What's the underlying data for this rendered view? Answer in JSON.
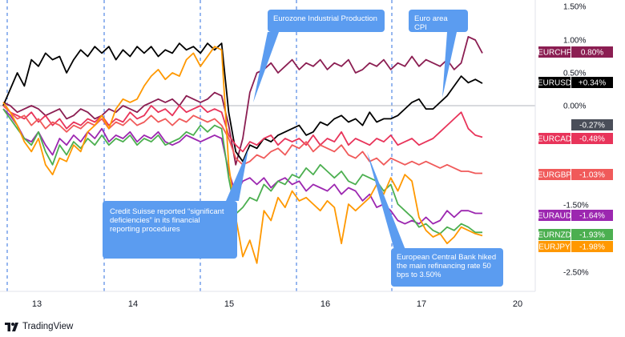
{
  "chart_data": {
    "type": "line",
    "x_ticks": [
      "13",
      "14",
      "15",
      "16",
      "17",
      "20"
    ],
    "y_ticks": [
      "1.50%",
      "1.00%",
      "0.50%",
      "0.00%",
      "-1.50%",
      "-2.50%"
    ],
    "ylim": [
      -2.85,
      1.55
    ],
    "grid": false,
    "legend": "right-edge value labels",
    "series": [
      {
        "name": "EURCHF",
        "value_label": "0.80%",
        "color": "#8b1e52",
        "values": [
          0.05,
          0.0,
          -0.1,
          -0.05,
          0.0,
          -0.05,
          -0.15,
          -0.1,
          -0.05,
          -0.2,
          -0.15,
          -0.05,
          -0.1,
          -0.2,
          -0.15,
          -0.05,
          -0.1,
          0.0,
          -0.05,
          -0.1,
          0.0,
          0.05,
          0.1,
          0.05,
          0.1,
          0.0,
          0.15,
          0.1,
          0.05,
          0.1,
          0.2,
          0.15,
          -0.3,
          -0.9,
          -0.5,
          0.2,
          0.5,
          0.55,
          0.65,
          0.5,
          0.6,
          0.7,
          0.55,
          0.65,
          0.6,
          0.7,
          0.55,
          0.65,
          0.6,
          0.7,
          0.5,
          0.55,
          0.65,
          0.6,
          0.7,
          0.55,
          0.65,
          0.6,
          0.75,
          0.6,
          0.7,
          0.65,
          0.6,
          0.7,
          0.55,
          0.65,
          1.05,
          1.0,
          0.8
        ]
      },
      {
        "name": "EURUSD",
        "value_label": "+0.34%",
        "color": "#000000",
        "values": [
          0.0,
          0.25,
          0.5,
          0.3,
          0.7,
          0.6,
          0.8,
          0.7,
          0.75,
          0.5,
          0.7,
          0.85,
          0.75,
          0.9,
          0.8,
          0.9,
          0.7,
          0.85,
          0.75,
          0.9,
          0.8,
          0.9,
          0.75,
          0.85,
          0.8,
          0.95,
          0.85,
          0.9,
          0.8,
          0.95,
          0.85,
          0.95,
          -0.1,
          -0.7,
          -0.85,
          -0.6,
          -0.65,
          -0.5,
          -0.55,
          -0.45,
          -0.4,
          -0.35,
          -0.3,
          -0.45,
          -0.4,
          -0.25,
          -0.3,
          -0.2,
          -0.15,
          -0.25,
          -0.2,
          -0.3,
          -0.1,
          -0.25,
          -0.2,
          -0.2,
          -0.15,
          -0.05,
          0.05,
          0.1,
          -0.05,
          -0.05,
          0.05,
          0.15,
          0.3,
          0.45,
          0.35,
          0.4,
          0.34
        ]
      },
      {
        "name": "EURCAD",
        "value_label": "-0.48%",
        "color": "#e8345a",
        "values": [
          0.0,
          -0.1,
          -0.15,
          -0.2,
          -0.1,
          -0.25,
          -0.15,
          -0.3,
          -0.2,
          -0.35,
          -0.25,
          -0.3,
          -0.2,
          -0.25,
          -0.15,
          -0.3,
          -0.2,
          -0.25,
          -0.1,
          -0.2,
          -0.15,
          0.0,
          -0.1,
          -0.05,
          -0.15,
          0.0,
          -0.1,
          -0.05,
          0.0,
          -0.1,
          -0.05,
          -0.1,
          -0.45,
          -0.6,
          -0.7,
          -0.55,
          -0.6,
          -0.5,
          -0.45,
          -0.6,
          -0.5,
          -0.55,
          -0.5,
          -0.6,
          -0.45,
          -0.6,
          -0.5,
          -0.55,
          -0.4,
          -0.6,
          -0.5,
          -0.55,
          -0.6,
          -0.5,
          -0.55,
          -0.45,
          -0.6,
          -0.55,
          -0.5,
          -0.6,
          -0.55,
          -0.5,
          -0.4,
          -0.3,
          -0.2,
          -0.1,
          -0.35,
          -0.45,
          -0.48
        ]
      },
      {
        "name": "EURGBP",
        "value_label": "-1.03%",
        "color": "#f05a5a",
        "values": [
          0.0,
          -0.1,
          -0.2,
          -0.15,
          -0.3,
          -0.2,
          -0.35,
          -0.25,
          -0.3,
          -0.4,
          -0.3,
          -0.35,
          -0.25,
          -0.3,
          -0.2,
          -0.35,
          -0.25,
          -0.3,
          -0.2,
          -0.3,
          -0.25,
          -0.15,
          -0.25,
          -0.2,
          -0.3,
          -0.2,
          -0.25,
          -0.15,
          -0.2,
          -0.25,
          -0.2,
          -0.3,
          -0.5,
          -0.8,
          -0.9,
          -0.85,
          -0.75,
          -0.8,
          -0.7,
          -0.65,
          -0.75,
          -0.6,
          -0.65,
          -0.55,
          -0.7,
          -0.6,
          -0.65,
          -0.7,
          -0.6,
          -0.75,
          -0.8,
          -0.7,
          -0.85,
          -0.8,
          -0.9,
          -0.8,
          -0.85,
          -0.9,
          -0.85,
          -0.9,
          -0.85,
          -0.9,
          -0.95,
          -0.9,
          -0.95,
          -1.0,
          -1.0,
          -1.03,
          -1.03
        ]
      },
      {
        "name": "EURAUD",
        "value_label": "-1.64%",
        "color": "#9c27b0",
        "values": [
          -0.05,
          -0.15,
          -0.3,
          -0.5,
          -0.55,
          -0.4,
          -0.6,
          -0.75,
          -0.5,
          -0.6,
          -0.45,
          -0.55,
          -0.4,
          -0.5,
          -0.35,
          -0.55,
          -0.45,
          -0.5,
          -0.4,
          -0.55,
          -0.45,
          -0.5,
          -0.4,
          -0.55,
          -0.6,
          -0.55,
          -0.45,
          -0.5,
          -0.55,
          -0.5,
          -0.45,
          -0.5,
          -1.0,
          -1.35,
          -1.15,
          -1.1,
          -1.2,
          -1.1,
          -1.25,
          -1.15,
          -1.1,
          -1.2,
          -1.15,
          -1.3,
          -1.2,
          -1.25,
          -1.3,
          -1.2,
          -1.35,
          -1.25,
          -1.3,
          -1.45,
          -1.35,
          -1.55,
          -1.5,
          -1.6,
          -1.75,
          -1.8,
          -1.75,
          -1.8,
          -1.7,
          -1.8,
          -1.75,
          -1.6,
          -1.7,
          -1.6,
          -1.6,
          -1.64,
          -1.64
        ]
      },
      {
        "name": "EURNZD",
        "value_label": "-1.93%",
        "color": "#4caf50",
        "values": [
          -0.05,
          -0.2,
          -0.35,
          -0.5,
          -0.6,
          -0.4,
          -0.7,
          -0.9,
          -0.6,
          -0.75,
          -0.55,
          -0.65,
          -0.5,
          -0.6,
          -0.45,
          -0.6,
          -0.5,
          -0.55,
          -0.45,
          -0.6,
          -0.5,
          -0.55,
          -0.45,
          -0.6,
          -0.55,
          -0.5,
          -0.4,
          -0.45,
          -0.3,
          -0.4,
          -0.3,
          -0.35,
          -1.1,
          -1.65,
          -1.55,
          -1.4,
          -1.45,
          -1.2,
          -1.3,
          -1.15,
          -1.2,
          -1.05,
          -1.1,
          -0.95,
          -1.05,
          -0.9,
          -1.0,
          -1.1,
          -1.0,
          -1.15,
          -1.2,
          -1.05,
          -1.1,
          -1.15,
          -1.3,
          -1.2,
          -1.5,
          -1.6,
          -1.7,
          -1.85,
          -1.8,
          -1.9,
          -1.95,
          -1.85,
          -1.9,
          -1.8,
          -1.85,
          -1.93,
          -1.93
        ]
      },
      {
        "name": "EURJPY",
        "value_label": "-1.98%",
        "color": "#ff9800",
        "values": [
          0.05,
          -0.1,
          -0.3,
          -0.55,
          -0.7,
          -0.5,
          -0.9,
          -1.05,
          -0.8,
          -0.85,
          -0.6,
          -0.7,
          -0.4,
          -0.3,
          -0.15,
          -0.35,
          -0.05,
          0.1,
          0.05,
          0.1,
          0.3,
          0.45,
          0.55,
          0.4,
          0.5,
          0.45,
          0.7,
          0.8,
          0.6,
          0.75,
          0.9,
          0.85,
          -0.9,
          -1.7,
          -2.3,
          -2.05,
          -2.4,
          -1.6,
          -1.75,
          -1.4,
          -1.55,
          -1.3,
          -1.45,
          -1.4,
          -1.5,
          -1.6,
          -1.45,
          -1.55,
          -2.1,
          -1.5,
          -1.6,
          -1.5,
          -1.4,
          -1.2,
          -1.35,
          -1.1,
          -1.3,
          -1.05,
          -1.15,
          -1.7,
          -1.9,
          -2.0,
          -1.95,
          -2.1,
          -2.0,
          -1.85,
          -1.9,
          -1.95,
          -1.98
        ]
      }
    ],
    "zero_chip": "-0.27%",
    "annotations": [
      {
        "text": "Eurozone Industrial Production"
      },
      {
        "text": "Euro area CPI"
      },
      {
        "text": "Credit Suisse reported “significant deficiencies” in its financial reporting procedures"
      },
      {
        "text": "European Central Bank hiked the main refinancing rate 50 bps to 3.50%"
      }
    ]
  },
  "branding": {
    "logo_text": "TradingView"
  }
}
